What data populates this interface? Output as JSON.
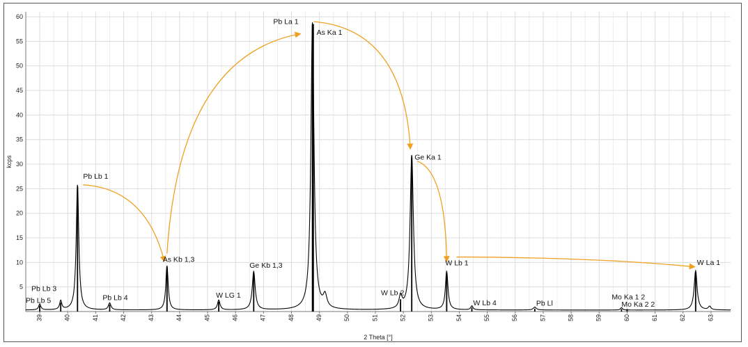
{
  "chart_data": {
    "type": "line",
    "xlabel": "2 Theta [°]",
    "ylabel": "kcps",
    "xlim": [
      38.5,
      63.7
    ],
    "ylim": [
      0,
      61
    ],
    "grid": true,
    "x_ticks": [
      39,
      40,
      41,
      42,
      43,
      44,
      45,
      46,
      47,
      48,
      49,
      50,
      51,
      52,
      53,
      54,
      55,
      56,
      57,
      58,
      59,
      60,
      61,
      62,
      63
    ],
    "y_ticks": [
      5,
      10,
      15,
      20,
      25,
      30,
      35,
      40,
      45,
      50,
      55,
      60
    ],
    "series": [
      {
        "baseline": 0.3,
        "peaks": [
          {
            "x": 39.0,
            "height": 1.2,
            "width": 0.06
          },
          {
            "x": 39.75,
            "height": 1.8,
            "width": 0.06
          },
          {
            "x": 40.35,
            "height": 25.5,
            "width": 0.07
          },
          {
            "x": 41.5,
            "height": 1.4,
            "width": 0.07
          },
          {
            "x": 43.55,
            "height": 9.0,
            "width": 0.065
          },
          {
            "x": 45.4,
            "height": 2.0,
            "width": 0.07
          },
          {
            "x": 46.65,
            "height": 7.8,
            "width": 0.08
          },
          {
            "x": 48.75,
            "height": 58.5,
            "width": 0.085
          },
          {
            "x": 49.2,
            "height": 2.5,
            "width": 0.1
          },
          {
            "x": 51.9,
            "height": 2.5,
            "width": 0.08
          },
          {
            "x": 52.3,
            "height": 31.5,
            "width": 0.09
          },
          {
            "x": 53.55,
            "height": 7.8,
            "width": 0.07
          },
          {
            "x": 54.45,
            "height": 0.8,
            "width": 0.06
          },
          {
            "x": 56.7,
            "height": 0.6,
            "width": 0.08
          },
          {
            "x": 59.8,
            "height": 0.5,
            "width": 0.05
          },
          {
            "x": 62.45,
            "height": 8.0,
            "width": 0.08
          },
          {
            "x": 62.95,
            "height": 0.7,
            "width": 0.07
          }
        ]
      }
    ],
    "peak_markers": [
      {
        "x": 39.0,
        "height": 1.2
      },
      {
        "x": 39.75,
        "height": 1.8
      },
      {
        "x": 40.35,
        "height": 25.5
      },
      {
        "x": 41.5,
        "height": 1.4
      },
      {
        "x": 43.55,
        "height": 9.0
      },
      {
        "x": 45.4,
        "height": 2.0
      },
      {
        "x": 46.65,
        "height": 7.8
      },
      {
        "x": 48.75,
        "height": 58.5
      },
      {
        "x": 48.78,
        "height": 58.5
      },
      {
        "x": 51.9,
        "height": 2.5
      },
      {
        "x": 52.3,
        "height": 31.5
      },
      {
        "x": 53.55,
        "height": 7.8
      },
      {
        "x": 54.45,
        "height": 0.8
      },
      {
        "x": 56.7,
        "height": 0.6
      },
      {
        "x": 59.8,
        "height": 0.5
      },
      {
        "x": 60.0,
        "height": 0.5
      },
      {
        "x": 62.45,
        "height": 8.0
      }
    ],
    "annotations": [
      {
        "text": "Pb Lb 5",
        "x": 38.5,
        "y": 1.8
      },
      {
        "text": "Pb Lb 3",
        "x": 38.7,
        "y": 4.2
      },
      {
        "text": "Pb Lb 1",
        "x": 40.55,
        "y": 27.0
      },
      {
        "text": "Pb Lb 4",
        "x": 41.25,
        "y": 2.3
      },
      {
        "text": "As Kb 1,3",
        "x": 43.4,
        "y": 10.1
      },
      {
        "text": "W LG 1",
        "x": 45.3,
        "y": 2.8
      },
      {
        "text": "Ge Kb 1,3",
        "x": 46.5,
        "y": 8.9
      },
      {
        "text": "Pb La 1",
        "x": 47.35,
        "y": 58.5
      },
      {
        "text": "As Ka 1",
        "x": 48.9,
        "y": 56.3
      },
      {
        "text": "W Lb 2",
        "x": 51.2,
        "y": 3.3
      },
      {
        "text": "Ge Ka 1",
        "x": 52.4,
        "y": 30.9
      },
      {
        "text": "W Lb 1",
        "x": 53.5,
        "y": 9.4
      },
      {
        "text": "W Lb 4",
        "x": 54.5,
        "y": 1.3
      },
      {
        "text": "Pb Ll",
        "x": 56.75,
        "y": 1.2
      },
      {
        "text": "Mo Ka 1 2",
        "x": 59.45,
        "y": 2.5
      },
      {
        "text": "Mo Ka 2 2",
        "x": 59.8,
        "y": 1.0
      },
      {
        "text": "W La 1",
        "x": 62.5,
        "y": 9.5
      }
    ],
    "arrows": [
      {
        "from": [
          40.55,
          25.8
        ],
        "ctrl": [
          42.8,
          25.0
        ],
        "to": [
          43.45,
          10.3
        ]
      },
      {
        "from": [
          43.55,
          11.8
        ],
        "ctrl": [
          44.0,
          52.0
        ],
        "to": [
          48.3,
          56.5
        ]
      },
      {
        "from": [
          48.8,
          59.0
        ],
        "ctrl": [
          52.0,
          57.5
        ],
        "to": [
          52.25,
          33.2
        ]
      },
      {
        "from": [
          52.5,
          30.6
        ],
        "ctrl": [
          53.5,
          28.5
        ],
        "to": [
          53.55,
          10.3
        ]
      },
      {
        "from": [
          53.9,
          11.1
        ],
        "ctrl": [
          59.0,
          11.0
        ],
        "to": [
          62.4,
          9.1
        ]
      }
    ],
    "colors": {
      "line": "#000000",
      "arrow": "#f0a020",
      "grid": "#dcdcdc"
    }
  }
}
